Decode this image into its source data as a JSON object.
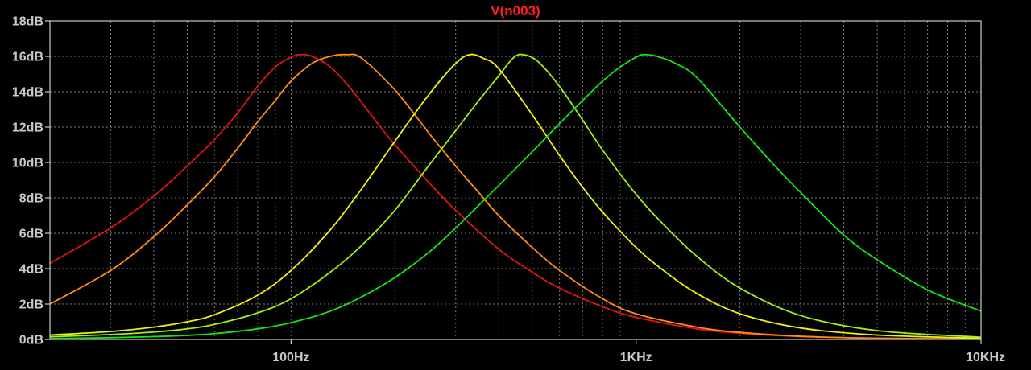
{
  "chart_data": {
    "type": "line",
    "title": "V(n003)",
    "title_color": "#ff2020",
    "background": "#000000",
    "grid": true,
    "grid_color": "#7a7a7a",
    "axis_color": "#c8c8c8",
    "x_scale": "log",
    "xlim": [
      20,
      10000
    ],
    "ylim": [
      0,
      18
    ],
    "x_ticks": [
      {
        "value": 100,
        "label": "100Hz"
      },
      {
        "value": 1000,
        "label": "1KHz"
      },
      {
        "value": 10000,
        "label": "10KHz"
      }
    ],
    "y_ticks": [
      {
        "value": 0,
        "label": "0dB"
      },
      {
        "value": 2,
        "label": "2dB"
      },
      {
        "value": 4,
        "label": "4dB"
      },
      {
        "value": 6,
        "label": "6dB"
      },
      {
        "value": 8,
        "label": "8dB"
      },
      {
        "value": 10,
        "label": "10dB"
      },
      {
        "value": 12,
        "label": "12dB"
      },
      {
        "value": 14,
        "label": "14dB"
      },
      {
        "value": 16,
        "label": "16dB"
      },
      {
        "value": 18,
        "label": "18dB"
      }
    ],
    "series": [
      {
        "color": "#e01414",
        "points": [
          [
            20,
            4.3
          ],
          [
            30,
            6.3
          ],
          [
            40,
            8.1
          ],
          [
            50,
            9.8
          ],
          [
            60,
            11.3
          ],
          [
            70,
            12.8
          ],
          [
            80,
            14.3
          ],
          [
            90,
            15.4
          ],
          [
            100,
            15.95
          ],
          [
            106,
            16.1
          ],
          [
            115,
            16.0
          ],
          [
            130,
            15.4
          ],
          [
            150,
            14.1
          ],
          [
            180,
            12.1
          ],
          [
            200,
            11.0
          ],
          [
            250,
            8.9
          ],
          [
            300,
            7.3
          ],
          [
            400,
            5.1
          ],
          [
            500,
            3.8
          ],
          [
            600,
            2.9
          ],
          [
            800,
            1.85
          ],
          [
            1000,
            1.25
          ],
          [
            1500,
            0.6
          ],
          [
            2000,
            0.35
          ],
          [
            3000,
            0.16
          ],
          [
            5000,
            0.07
          ],
          [
            10000,
            0.02
          ]
        ]
      },
      {
        "color": "#ff8c14",
        "points": [
          [
            20,
            2.0
          ],
          [
            30,
            3.9
          ],
          [
            40,
            5.8
          ],
          [
            50,
            7.6
          ],
          [
            60,
            9.2
          ],
          [
            70,
            10.8
          ],
          [
            80,
            12.3
          ],
          [
            90,
            13.5
          ],
          [
            100,
            14.6
          ],
          [
            115,
            15.6
          ],
          [
            130,
            16.0
          ],
          [
            145,
            16.1
          ],
          [
            160,
            15.9
          ],
          [
            200,
            14.1
          ],
          [
            250,
            11.7
          ],
          [
            300,
            9.8
          ],
          [
            350,
            8.3
          ],
          [
            400,
            7.0
          ],
          [
            500,
            5.2
          ],
          [
            600,
            3.9
          ],
          [
            800,
            2.3
          ],
          [
            1000,
            1.45
          ],
          [
            1500,
            0.7
          ],
          [
            2000,
            0.4
          ],
          [
            3000,
            0.18
          ],
          [
            5000,
            0.07
          ],
          [
            10000,
            0.02
          ]
        ]
      },
      {
        "color": "#f0f014",
        "points": [
          [
            20,
            0.25
          ],
          [
            30,
            0.45
          ],
          [
            40,
            0.7
          ],
          [
            50,
            1.0
          ],
          [
            60,
            1.4
          ],
          [
            80,
            2.5
          ],
          [
            100,
            3.9
          ],
          [
            130,
            6.2
          ],
          [
            160,
            8.5
          ],
          [
            200,
            11.2
          ],
          [
            250,
            13.8
          ],
          [
            300,
            15.6
          ],
          [
            330,
            16.1
          ],
          [
            360,
            15.9
          ],
          [
            400,
            15.3
          ],
          [
            500,
            12.7
          ],
          [
            600,
            10.4
          ],
          [
            700,
            8.6
          ],
          [
            800,
            7.2
          ],
          [
            1000,
            5.2
          ],
          [
            1200,
            3.9
          ],
          [
            1500,
            2.6
          ],
          [
            2000,
            1.45
          ],
          [
            3000,
            0.65
          ],
          [
            5000,
            0.25
          ],
          [
            10000,
            0.07
          ]
        ]
      },
      {
        "color": "#a0f014",
        "points": [
          [
            20,
            0.15
          ],
          [
            30,
            0.28
          ],
          [
            40,
            0.42
          ],
          [
            50,
            0.6
          ],
          [
            60,
            0.85
          ],
          [
            80,
            1.5
          ],
          [
            100,
            2.3
          ],
          [
            130,
            3.8
          ],
          [
            160,
            5.3
          ],
          [
            200,
            7.3
          ],
          [
            250,
            9.8
          ],
          [
            300,
            11.8
          ],
          [
            350,
            13.5
          ],
          [
            400,
            14.9
          ],
          [
            440,
            15.9
          ],
          [
            470,
            16.1
          ],
          [
            520,
            15.7
          ],
          [
            600,
            14.3
          ],
          [
            700,
            12.4
          ],
          [
            800,
            10.7
          ],
          [
            1000,
            8.2
          ],
          [
            1200,
            6.5
          ],
          [
            1500,
            4.7
          ],
          [
            2000,
            2.9
          ],
          [
            3000,
            1.35
          ],
          [
            5000,
            0.5
          ],
          [
            10000,
            0.13
          ]
        ]
      },
      {
        "color": "#14e614",
        "points": [
          [
            20,
            0.05
          ],
          [
            30,
            0.1
          ],
          [
            40,
            0.16
          ],
          [
            50,
            0.23
          ],
          [
            60,
            0.33
          ],
          [
            80,
            0.6
          ],
          [
            100,
            0.95
          ],
          [
            130,
            1.6
          ],
          [
            160,
            2.4
          ],
          [
            200,
            3.5
          ],
          [
            250,
            4.9
          ],
          [
            300,
            6.3
          ],
          [
            400,
            8.7
          ],
          [
            500,
            10.6
          ],
          [
            600,
            12.2
          ],
          [
            700,
            13.5
          ],
          [
            800,
            14.6
          ],
          [
            900,
            15.4
          ],
          [
            1000,
            15.95
          ],
          [
            1050,
            16.1
          ],
          [
            1150,
            16.0
          ],
          [
            1300,
            15.6
          ],
          [
            1500,
            14.8
          ],
          [
            2000,
            12.0
          ],
          [
            2500,
            9.9
          ],
          [
            3000,
            8.3
          ],
          [
            4000,
            5.9
          ],
          [
            5000,
            4.5
          ],
          [
            7000,
            2.8
          ],
          [
            10000,
            1.6
          ]
        ]
      }
    ]
  }
}
